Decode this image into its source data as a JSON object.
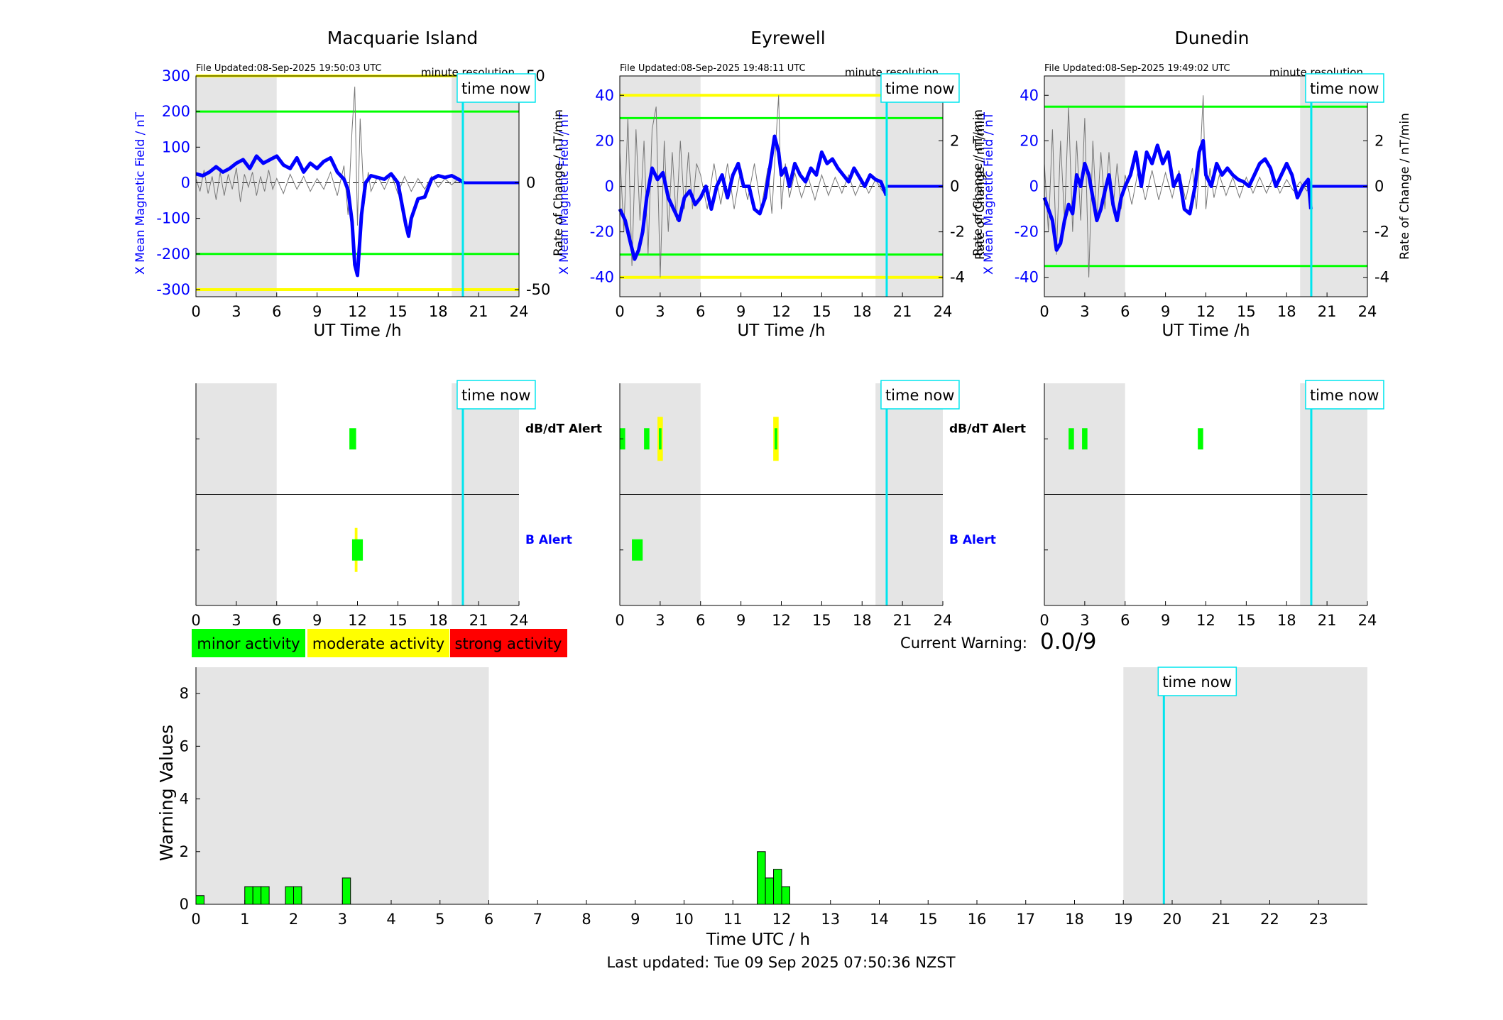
{
  "page": {
    "footer": "Last updated: Tue 09 Sep 2025 07:50:36 NZST",
    "time_now_label": "time now",
    "resolution_label": "minute resolution",
    "colors": {
      "field": "#0000ff",
      "grey_region": "#e5e5e5",
      "now_line": "#00e5ee",
      "threshold_high": "#ffff00",
      "threshold_low": "#00ff00",
      "minor": "#00ff00",
      "moderate": "#ffff00",
      "strong": "#ff0000"
    }
  },
  "legend": {
    "minor": "minor activity",
    "moderate": "moderate activity",
    "strong": "strong activity"
  },
  "warning": {
    "label": "Current Warning:",
    "value": "0.0/9"
  },
  "chart_data": [
    {
      "type": "line",
      "title": "Macquarie Island",
      "file_updated": "File Updated:08-Sep-2025 19:50:03 UTC",
      "xlabel": "UT Time /h",
      "ylabel": "X Mean Magnetic Field / nT",
      "y2label": "",
      "xlim": [
        0,
        24
      ],
      "xticks": [
        0,
        3,
        6,
        9,
        12,
        15,
        18,
        21,
        24
      ],
      "ylim": [
        -320,
        300
      ],
      "yticks": [
        -300,
        -200,
        -100,
        0,
        100,
        200,
        300
      ],
      "y2lim": [
        -53.3,
        50
      ],
      "y2ticks": [
        -50,
        0,
        50
      ],
      "time_now": 19.83,
      "grey_ranges": [
        [
          0,
          6
        ],
        [
          19,
          24
        ]
      ],
      "thresholds_yellow": [
        300,
        -300
      ],
      "thresholds_green": [
        200,
        -200
      ],
      "series": [
        {
          "name": "",
          "x": [
            0,
            0.5,
            1,
            1.5,
            2,
            2.5,
            3,
            3.5,
            4,
            4.5,
            5,
            5.5,
            6,
            6.5,
            7,
            7.5,
            8,
            8.5,
            9,
            9.5,
            10,
            10.5,
            11,
            11.3,
            11.6,
            11.8,
            12,
            12.3,
            12.6,
            13,
            13.5,
            14,
            14.5,
            15,
            15.3,
            15.6,
            15.8,
            16,
            16.5,
            17,
            17.5,
            18,
            18.5,
            19,
            19.5,
            19.9
          ],
          "y": [
            25,
            20,
            30,
            45,
            30,
            40,
            55,
            65,
            40,
            75,
            55,
            65,
            75,
            50,
            40,
            70,
            30,
            55,
            40,
            60,
            70,
            30,
            10,
            -20,
            -110,
            -230,
            -260,
            -90,
            0,
            20,
            15,
            10,
            25,
            0,
            -60,
            -120,
            -150,
            -100,
            -45,
            -40,
            10,
            20,
            15,
            20,
            10,
            0
          ]
        },
        {
          "name": "",
          "x": [
            19.9,
            24
          ],
          "y": [
            0,
            0
          ]
        }
      ],
      "rate_series": {
        "x": [
          0,
          0.3,
          0.6,
          0.9,
          1.2,
          1.5,
          1.8,
          2.1,
          2.4,
          2.7,
          3,
          3.3,
          3.6,
          3.9,
          4.2,
          4.5,
          4.8,
          5.1,
          5.4,
          5.7,
          6,
          6.5,
          7,
          7.5,
          8,
          8.5,
          9,
          9.5,
          10,
          10.5,
          11,
          11.3,
          11.6,
          11.8,
          12,
          12.2,
          12.5,
          12.8,
          13,
          13.5,
          14,
          14.5,
          15,
          15.5,
          16,
          16.5,
          17,
          17.5,
          18,
          18.5,
          19,
          19.5,
          19.9
        ],
        "y": [
          2,
          -4,
          6,
          -5,
          3,
          -8,
          5,
          -6,
          4,
          -3,
          7,
          -9,
          4,
          -2,
          5,
          -6,
          3,
          -4,
          6,
          -3,
          2,
          -5,
          4,
          -3,
          3,
          -4,
          2,
          -3,
          5,
          -6,
          8,
          -15,
          25,
          45,
          -20,
          30,
          -10,
          5,
          -4,
          3,
          -3,
          4,
          -5,
          3,
          -4,
          2,
          -3,
          3,
          -2,
          2,
          -1,
          2,
          0
        ]
      }
    },
    {
      "type": "line",
      "title": "Eyrewell",
      "file_updated": "File Updated:08-Sep-2025 19:48:11 UTC",
      "xlabel": "UT Time /h",
      "ylabel": "X Mean Magnetic Field / nT",
      "y2label": "Rate of Change / nT/min",
      "xlim": [
        0,
        24
      ],
      "xticks": [
        0,
        3,
        6,
        9,
        12,
        15,
        18,
        21,
        24
      ],
      "ylim": [
        -48.5,
        48.5
      ],
      "yticks": [
        -40,
        -20,
        0,
        20,
        40
      ],
      "y2lim": [
        -4.85,
        4.85
      ],
      "y2ticks": [
        -4,
        -2,
        0,
        2,
        4
      ],
      "time_now": 19.83,
      "grey_ranges": [
        [
          0,
          6
        ],
        [
          19,
          24
        ]
      ],
      "thresholds_yellow": [
        40,
        -40
      ],
      "thresholds_green": [
        30,
        -30
      ],
      "series": [
        {
          "name": "",
          "x": [
            0,
            0.4,
            0.8,
            1.1,
            1.4,
            1.7,
            2,
            2.4,
            2.8,
            3.2,
            3.6,
            4,
            4.4,
            4.8,
            5.2,
            5.6,
            6,
            6.4,
            6.8,
            7.2,
            7.6,
            8,
            8.4,
            8.8,
            9.2,
            9.6,
            10,
            10.4,
            10.8,
            11.2,
            11.5,
            11.8,
            12,
            12.3,
            12.6,
            13,
            13.4,
            13.8,
            14.2,
            14.6,
            15,
            15.4,
            15.8,
            16.2,
            16.6,
            17,
            17.4,
            17.8,
            18.2,
            18.6,
            19,
            19.4,
            19.8
          ],
          "y": [
            -10,
            -15,
            -25,
            -32,
            -28,
            -20,
            -5,
            8,
            3,
            6,
            -5,
            -10,
            -15,
            -5,
            -2,
            -8,
            -5,
            0,
            -10,
            0,
            5,
            -5,
            5,
            10,
            0,
            0,
            -10,
            -12,
            -5,
            10,
            22,
            15,
            5,
            8,
            0,
            10,
            5,
            2,
            8,
            5,
            15,
            10,
            12,
            8,
            5,
            2,
            8,
            4,
            0,
            5,
            3,
            2,
            -4
          ]
        },
        {
          "name": "",
          "x": [
            19.8,
            24
          ],
          "y": [
            0,
            0
          ]
        }
      ],
      "rate_series": {
        "x": [
          0,
          0.3,
          0.6,
          0.9,
          1.2,
          1.5,
          1.8,
          2.1,
          2.4,
          2.7,
          3,
          3.3,
          3.6,
          3.9,
          4.2,
          4.5,
          4.8,
          5.1,
          5.4,
          5.7,
          6,
          6.5,
          7,
          7.5,
          8,
          8.5,
          9,
          9.5,
          10,
          10.5,
          11,
          11.3,
          11.6,
          11.8,
          12,
          12.3,
          12.6,
          13,
          13.5,
          14,
          14.5,
          15,
          15.5,
          16,
          16.5,
          17,
          17.5,
          18,
          18.5,
          19,
          19.5,
          19.8
        ],
        "y": [
          1.5,
          -2,
          3,
          -3.5,
          2.5,
          -1.5,
          2,
          -3,
          2.5,
          3.5,
          -4,
          2,
          -2,
          1.5,
          -1.5,
          2,
          -1,
          1.5,
          -1,
          1,
          0.5,
          -1,
          1,
          -0.8,
          1,
          -1,
          0.8,
          -0.6,
          1,
          -1,
          0.8,
          -1.2,
          2,
          4,
          -1,
          1,
          -0.5,
          0.6,
          -0.5,
          0.4,
          -0.6,
          0.5,
          -0.4,
          0.4,
          -0.3,
          0.5,
          -0.4,
          0.3,
          -0.3,
          0.3,
          -0.2,
          0
        ]
      }
    },
    {
      "type": "line",
      "title": "Dunedin",
      "file_updated": "File Updated:08-Sep-2025 19:49:02 UTC",
      "xlabel": "UT Time /h",
      "ylabel": "X Mean Magnetic Field / nT",
      "y2label": "Rate of Change / nT/min",
      "xlim": [
        0,
        24
      ],
      "xticks": [
        0,
        3,
        6,
        9,
        12,
        15,
        18,
        21,
        24
      ],
      "ylim": [
        -48.5,
        48.5
      ],
      "yticks": [
        -40,
        -20,
        0,
        20,
        40
      ],
      "y2lim": [
        -4.85,
        4.85
      ],
      "y2ticks": [
        -4,
        -2,
        0,
        2,
        4
      ],
      "time_now": 19.83,
      "grey_ranges": [
        [
          0,
          6
        ],
        [
          19,
          24
        ]
      ],
      "thresholds_yellow": [],
      "thresholds_green": [
        35,
        -35
      ],
      "series": [
        {
          "name": "",
          "x": [
            0,
            0.3,
            0.6,
            0.9,
            1.2,
            1.5,
            1.8,
            2.1,
            2.4,
            2.7,
            3,
            3.3,
            3.6,
            3.9,
            4.2,
            4.5,
            4.8,
            5.1,
            5.4,
            5.7,
            6,
            6.4,
            6.8,
            7.2,
            7.6,
            8,
            8.4,
            8.8,
            9.2,
            9.6,
            10,
            10.4,
            10.8,
            11.2,
            11.5,
            11.8,
            12,
            12.4,
            12.8,
            13.2,
            13.6,
            14,
            14.4,
            14.8,
            15.2,
            15.6,
            16,
            16.4,
            16.8,
            17.2,
            17.6,
            18,
            18.4,
            18.8,
            19.2,
            19.6,
            19.8
          ],
          "y": [
            -5,
            -10,
            -15,
            -28,
            -25,
            -15,
            -8,
            -12,
            5,
            0,
            10,
            5,
            -5,
            -15,
            -10,
            -2,
            5,
            -8,
            -15,
            -5,
            0,
            5,
            15,
            0,
            15,
            10,
            18,
            10,
            15,
            0,
            5,
            -10,
            -12,
            0,
            15,
            20,
            5,
            0,
            10,
            5,
            8,
            5,
            3,
            2,
            0,
            5,
            10,
            12,
            8,
            0,
            5,
            10,
            5,
            -5,
            0,
            3,
            -10
          ]
        },
        {
          "name": "",
          "x": [
            19.8,
            24
          ],
          "y": [
            0,
            0
          ]
        }
      ],
      "rate_series": {
        "x": [
          0,
          0.3,
          0.6,
          0.9,
          1.2,
          1.5,
          1.8,
          2.1,
          2.4,
          2.7,
          3,
          3.3,
          3.6,
          3.9,
          4.2,
          4.5,
          4.8,
          5.1,
          5.4,
          5.7,
          6,
          6.5,
          7,
          7.5,
          8,
          8.5,
          9,
          9.5,
          10,
          10.5,
          11,
          11.3,
          11.6,
          11.8,
          12,
          12.3,
          12.6,
          13,
          13.5,
          14,
          14.5,
          15,
          15.5,
          16,
          16.5,
          17,
          17.5,
          18,
          18.5,
          19,
          19.5,
          19.8
        ],
        "y": [
          1,
          -2,
          2.5,
          -3,
          2,
          -1.5,
          3.5,
          -2,
          2,
          -1.5,
          3,
          -4,
          2,
          -1.5,
          1.5,
          -1,
          1.5,
          -1,
          1,
          -1,
          0.5,
          -0.8,
          0.8,
          -0.6,
          0.7,
          -0.6,
          0.6,
          -0.5,
          0.7,
          -0.6,
          0.8,
          -1,
          1.5,
          4,
          -1,
          0.8,
          -0.5,
          0.5,
          -0.4,
          0.4,
          -0.5,
          0.4,
          -0.3,
          0.4,
          -0.3,
          0.4,
          -0.3,
          0.3,
          -0.2,
          0.2,
          -0.2,
          0
        ]
      }
    },
    {
      "type": "bar",
      "title": "",
      "station": "Macquarie Island",
      "xlim": [
        0,
        24
      ],
      "xticks": [
        0,
        3,
        6,
        9,
        12,
        15,
        18,
        21,
        24
      ],
      "time_now": 19.83,
      "grey_ranges": [
        [
          0,
          6
        ],
        [
          19,
          24
        ]
      ],
      "row_labels": [
        "dB/dT Alert",
        "B Alert"
      ],
      "alerts": [
        {
          "row": 0,
          "start": 11.4,
          "end": 11.9,
          "level": "minor"
        },
        {
          "row": 1,
          "start": 11.8,
          "end": 12.0,
          "level": "moderate"
        },
        {
          "row": 1,
          "start": 11.6,
          "end": 12.4,
          "level": "minor"
        }
      ]
    },
    {
      "type": "bar",
      "title": "",
      "station": "Eyrewell",
      "xlim": [
        0,
        24
      ],
      "xticks": [
        0,
        3,
        6,
        9,
        12,
        15,
        18,
        21,
        24
      ],
      "time_now": 19.83,
      "grey_ranges": [
        [
          0,
          6
        ],
        [
          19,
          24
        ]
      ],
      "row_labels": [
        "dB/dT Alert",
        "B Alert"
      ],
      "alerts": [
        {
          "row": 0,
          "start": 0.0,
          "end": 0.4,
          "level": "minor"
        },
        {
          "row": 0,
          "start": 1.8,
          "end": 2.2,
          "level": "minor"
        },
        {
          "row": 0,
          "start": 2.8,
          "end": 3.2,
          "level": "moderate"
        },
        {
          "row": 0,
          "start": 2.9,
          "end": 3.1,
          "level": "minor"
        },
        {
          "row": 0,
          "start": 11.4,
          "end": 11.8,
          "level": "moderate"
        },
        {
          "row": 0,
          "start": 11.5,
          "end": 11.7,
          "level": "minor"
        },
        {
          "row": 1,
          "start": 0.9,
          "end": 1.7,
          "level": "minor"
        }
      ]
    },
    {
      "type": "bar",
      "title": "",
      "station": "Dunedin",
      "xlim": [
        0,
        24
      ],
      "xticks": [
        0,
        3,
        6,
        9,
        12,
        15,
        18,
        21,
        24
      ],
      "time_now": 19.83,
      "grey_ranges": [
        [
          0,
          6
        ],
        [
          19,
          24
        ]
      ],
      "row_labels": [
        "",
        ""
      ],
      "alerts": [
        {
          "row": 0,
          "start": 1.8,
          "end": 2.2,
          "level": "minor"
        },
        {
          "row": 0,
          "start": 2.8,
          "end": 3.2,
          "level": "minor"
        },
        {
          "row": 0,
          "start": 11.4,
          "end": 11.8,
          "level": "minor"
        }
      ]
    },
    {
      "type": "bar",
      "title": "",
      "xlabel": "Time UTC / h",
      "ylabel": "Warning Values",
      "xlim": [
        0,
        24
      ],
      "xticks": [
        0,
        1,
        2,
        3,
        4,
        5,
        6,
        7,
        8,
        9,
        10,
        11,
        12,
        13,
        14,
        15,
        16,
        17,
        18,
        19,
        20,
        21,
        22,
        23
      ],
      "ylim": [
        0,
        9
      ],
      "yticks": [
        0,
        2,
        4,
        6,
        8
      ],
      "time_now": 19.83,
      "grey_ranges": [
        [
          0,
          6
        ],
        [
          19,
          24
        ]
      ],
      "bar_width": 0.1667,
      "bars": [
        {
          "x": 0.0,
          "value": 0.33
        },
        {
          "x": 1.0,
          "value": 0.67
        },
        {
          "x": 1.1667,
          "value": 0.67
        },
        {
          "x": 1.3333,
          "value": 0.67
        },
        {
          "x": 1.8333,
          "value": 0.67
        },
        {
          "x": 2.0,
          "value": 0.67
        },
        {
          "x": 3.0,
          "value": 1.0
        },
        {
          "x": 11.5,
          "value": 2.0
        },
        {
          "x": 11.6667,
          "value": 1.0
        },
        {
          "x": 11.8333,
          "value": 1.33
        },
        {
          "x": 12.0,
          "value": 0.67
        }
      ]
    }
  ]
}
